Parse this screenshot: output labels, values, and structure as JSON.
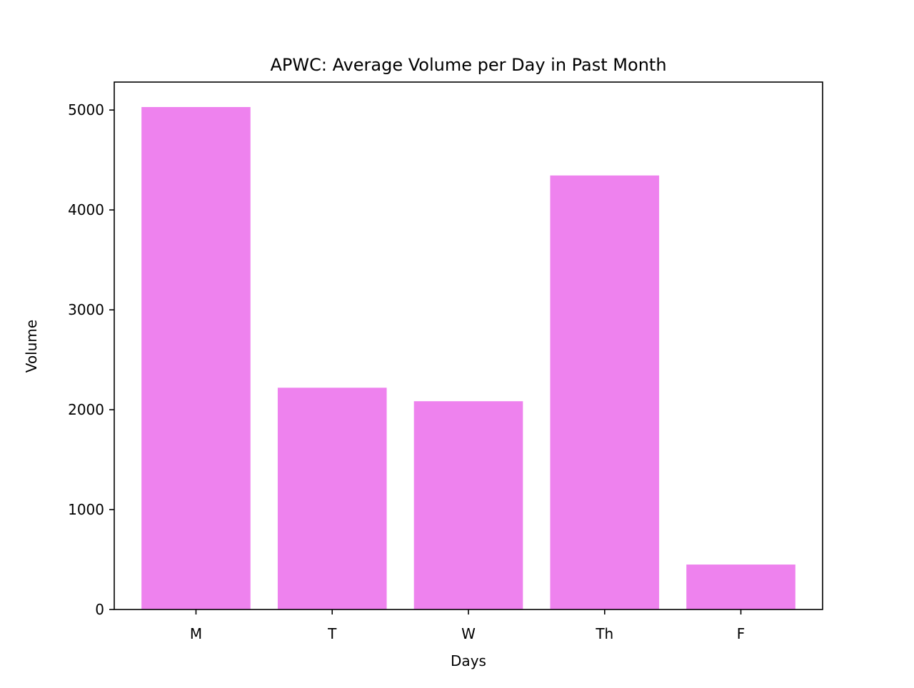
{
  "chart_data": {
    "type": "bar",
    "title": "APWC: Average Volume per Day in Past Month",
    "xlabel": "Days",
    "ylabel": "Volume",
    "categories": [
      "M",
      "T",
      "W",
      "Th",
      "F"
    ],
    "values": [
      5030,
      2220,
      2085,
      4345,
      450
    ],
    "ylim": [
      0,
      5280
    ],
    "yticks": [
      0,
      1000,
      2000,
      3000,
      4000,
      5000
    ],
    "bar_color": "#ee82ee",
    "grid": false,
    "legend": "none"
  }
}
